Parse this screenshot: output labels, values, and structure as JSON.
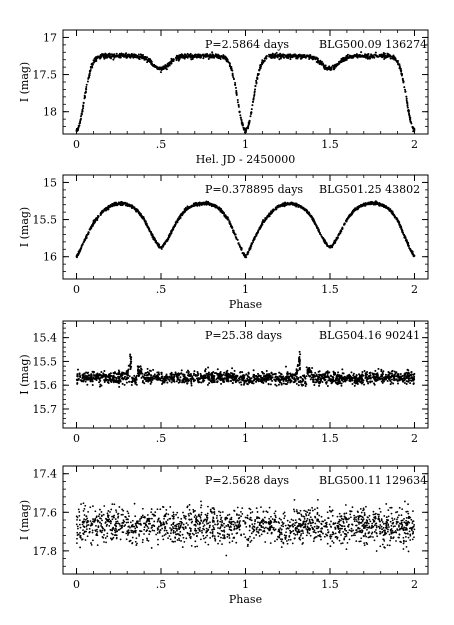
{
  "chart_data": [
    {
      "type": "scatter",
      "period_label": "P=2.5864 days",
      "star_label": "BLG500.09 136274",
      "xlabel": "Hel. JD - 2450000",
      "ylabel": "I (mag)",
      "xlim": [
        -0.08,
        2.08
      ],
      "ylim": [
        18.3,
        16.9
      ],
      "y_inverted": true,
      "xticks": [
        0,
        0.5,
        1,
        1.5,
        2
      ],
      "xtick_labels": [
        "0",
        ".5",
        "1",
        "1.5",
        "2"
      ],
      "yticks": [
        17,
        17.5,
        18
      ],
      "ytick_labels": [
        "17",
        "17.5",
        "18"
      ],
      "model": {
        "base": 17.25,
        "primary_depth": 1.0,
        "primary_width": 0.045,
        "secondary_depth": 0.17,
        "secondary_width": 0.05,
        "curvature": 0.0,
        "scatter": 0.015
      },
      "series": [
        {
          "values": [
            [
              0.0,
              18.25
            ],
            [
              0.02,
              18.0
            ],
            [
              0.04,
              17.6
            ],
            [
              0.06,
              17.35
            ],
            [
              0.1,
              17.27
            ],
            [
              0.2,
              17.26
            ],
            [
              0.3,
              17.25
            ],
            [
              0.4,
              17.3
            ],
            [
              0.45,
              17.36
            ],
            [
              0.5,
              17.42
            ],
            [
              0.55,
              17.36
            ],
            [
              0.6,
              17.3
            ],
            [
              0.7,
              17.25
            ],
            [
              0.8,
              17.26
            ],
            [
              0.9,
              17.27
            ],
            [
              0.94,
              17.35
            ],
            [
              0.96,
              17.6
            ],
            [
              0.98,
              18.0
            ],
            [
              1.0,
              18.25
            ],
            [
              1.02,
              18.0
            ],
            [
              1.04,
              17.6
            ],
            [
              1.06,
              17.35
            ],
            [
              1.1,
              17.27
            ],
            [
              1.2,
              17.26
            ],
            [
              1.3,
              17.25
            ],
            [
              1.4,
              17.3
            ],
            [
              1.45,
              17.36
            ],
            [
              1.5,
              17.42
            ],
            [
              1.55,
              17.36
            ],
            [
              1.6,
              17.3
            ],
            [
              1.7,
              17.25
            ],
            [
              1.8,
              17.26
            ],
            [
              1.9,
              17.27
            ],
            [
              1.94,
              17.35
            ],
            [
              1.96,
              17.6
            ],
            [
              1.98,
              18.0
            ],
            [
              2.0,
              18.25
            ]
          ]
        }
      ]
    },
    {
      "type": "scatter",
      "period_label": "P=0.378895 days",
      "star_label": "BLG501.25 43802",
      "xlabel": "Phase",
      "ylabel": "I (mag)",
      "xlim": [
        -0.08,
        2.08
      ],
      "ylim": [
        16.3,
        14.9
      ],
      "y_inverted": true,
      "xticks": [
        0,
        0.5,
        1,
        1.5,
        2
      ],
      "xtick_labels": [
        "0",
        ".5",
        "1",
        "1.5",
        "2"
      ],
      "yticks": [
        15,
        15.5,
        16
      ],
      "ytick_labels": [
        "15",
        "15.5",
        "16"
      ],
      "model": {
        "base": 15.27,
        "primary_depth": 0.48,
        "primary_width": 0.085,
        "secondary_depth": 0.58,
        "secondary_width": 0.075,
        "curvature": 0.55,
        "scatter": 0.01
      },
      "series": [
        {
          "values": [
            [
              0.0,
              16.2
            ],
            [
              0.05,
              15.8
            ],
            [
              0.1,
              15.55
            ],
            [
              0.15,
              15.42
            ],
            [
              0.2,
              15.33
            ],
            [
              0.25,
              15.29
            ],
            [
              0.3,
              15.3
            ],
            [
              0.35,
              15.35
            ],
            [
              0.4,
              15.45
            ],
            [
              0.45,
              15.65
            ],
            [
              0.5,
              15.85
            ],
            [
              0.55,
              15.65
            ],
            [
              0.6,
              15.45
            ],
            [
              0.65,
              15.36
            ],
            [
              0.7,
              15.3
            ],
            [
              0.75,
              15.28
            ],
            [
              0.8,
              15.29
            ],
            [
              0.85,
              15.33
            ],
            [
              0.9,
              15.47
            ],
            [
              0.95,
              15.8
            ],
            [
              1.0,
              16.2
            ],
            [
              1.05,
              15.8
            ],
            [
              1.1,
              15.55
            ],
            [
              1.15,
              15.42
            ],
            [
              1.2,
              15.33
            ],
            [
              1.25,
              15.29
            ],
            [
              1.3,
              15.3
            ],
            [
              1.35,
              15.35
            ],
            [
              1.4,
              15.45
            ],
            [
              1.45,
              15.65
            ],
            [
              1.5,
              15.85
            ],
            [
              1.55,
              15.65
            ],
            [
              1.6,
              15.45
            ],
            [
              1.65,
              15.36
            ],
            [
              1.7,
              15.3
            ],
            [
              1.75,
              15.28
            ],
            [
              1.8,
              15.29
            ],
            [
              1.85,
              15.33
            ],
            [
              1.9,
              15.47
            ],
            [
              1.95,
              15.8
            ],
            [
              2.0,
              16.2
            ]
          ]
        }
      ]
    },
    {
      "type": "scatter",
      "period_label": "P=25.38 days",
      "star_label": "BLG504.16 90241",
      "xlabel": "",
      "ylabel": "I (mag)",
      "xlim": [
        -0.08,
        2.08
      ],
      "ylim": [
        15.78,
        15.33
      ],
      "y_inverted": true,
      "xticks": [
        0,
        0.5,
        1,
        1.5,
        2
      ],
      "xtick_labels": [
        "0",
        ".5",
        "1",
        "1.5",
        "2"
      ],
      "yticks": [
        15.4,
        15.5,
        15.6,
        15.7
      ],
      "ytick_labels": [
        "15.4",
        "15.5",
        "15.6",
        "15.7"
      ],
      "model": {
        "base": 15.575,
        "wave_amp": 0.012,
        "scatter": 0.013
      },
      "series": [
        {
          "values": [
            [
              0.0,
              15.58
            ],
            [
              0.1,
              15.58
            ],
            [
              0.2,
              15.575
            ],
            [
              0.3,
              15.565
            ],
            [
              0.32,
              15.49
            ],
            [
              0.4,
              15.56
            ],
            [
              0.5,
              15.555
            ],
            [
              0.6,
              15.56
            ],
            [
              0.7,
              15.565
            ],
            [
              0.8,
              15.57
            ],
            [
              0.9,
              15.575
            ],
            [
              1.0,
              15.585
            ],
            [
              1.1,
              15.58
            ],
            [
              1.2,
              15.575
            ],
            [
              1.3,
              15.565
            ],
            [
              1.32,
              15.49
            ],
            [
              1.4,
              15.56
            ],
            [
              1.5,
              15.555
            ],
            [
              1.6,
              15.56
            ],
            [
              1.7,
              15.565
            ],
            [
              1.8,
              15.57
            ],
            [
              1.9,
              15.575
            ],
            [
              2.0,
              15.58
            ]
          ]
        }
      ]
    },
    {
      "type": "scatter",
      "period_label": "P=2.5628 days",
      "star_label": "BLG500.11 129634",
      "xlabel": "Phase",
      "ylabel": "I (mag)",
      "xlim": [
        -0.08,
        2.08
      ],
      "ylim": [
        17.92,
        17.36
      ],
      "y_inverted": true,
      "xticks": [
        0,
        0.5,
        1,
        1.5,
        2
      ],
      "xtick_labels": [
        "0",
        ".5",
        "1",
        "1.5",
        "2"
      ],
      "yticks": [
        17.4,
        17.6,
        17.8
      ],
      "ytick_labels": [
        "17.4",
        "17.6",
        "17.8"
      ],
      "model": {
        "base": 17.67,
        "wave_amp": 0.0,
        "scatter": 0.045
      },
      "series": [
        {
          "values": [
            [
              0.0,
              17.66
            ],
            [
              0.1,
              17.67
            ],
            [
              0.2,
              17.65
            ],
            [
              0.3,
              17.68
            ],
            [
              0.4,
              17.67
            ],
            [
              0.5,
              17.66
            ],
            [
              0.6,
              17.68
            ],
            [
              0.7,
              17.67
            ],
            [
              0.8,
              17.66
            ],
            [
              0.9,
              17.68
            ],
            [
              1.0,
              17.67
            ],
            [
              1.1,
              17.66
            ],
            [
              1.2,
              17.68
            ],
            [
              1.3,
              17.67
            ],
            [
              1.4,
              17.66
            ],
            [
              1.5,
              17.68
            ],
            [
              1.6,
              17.67
            ],
            [
              1.7,
              17.66
            ],
            [
              1.8,
              17.68
            ],
            [
              1.9,
              17.67
            ],
            [
              2.0,
              17.66
            ]
          ]
        }
      ]
    }
  ]
}
